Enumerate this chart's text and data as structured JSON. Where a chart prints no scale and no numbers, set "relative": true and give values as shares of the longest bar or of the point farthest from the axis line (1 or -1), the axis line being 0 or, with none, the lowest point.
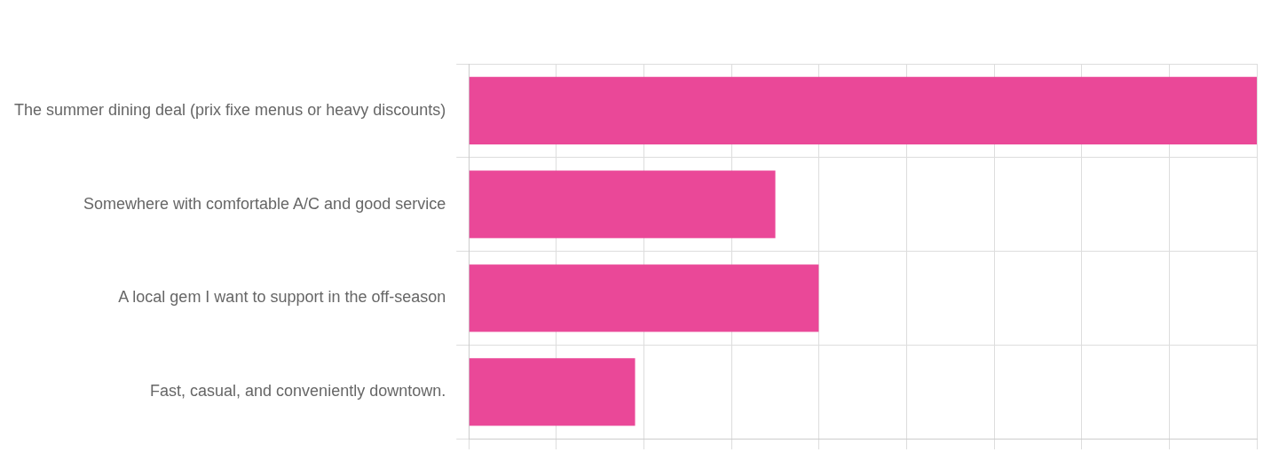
{
  "chart_data": {
    "type": "bar",
    "orientation": "horizontal",
    "relative": true,
    "categories": [
      "The summer dining deal (prix fixe menus or heavy discounts)",
      "Somewhere with comfortable A/C and good service",
      "A local gem I want to support in the off-season",
      "Fast, casual, and conveniently downtown."
    ],
    "values": [
      1,
      0.389,
      0.444,
      0.211
    ],
    "color": "#ea4898",
    "grid": true,
    "legend": false
  }
}
